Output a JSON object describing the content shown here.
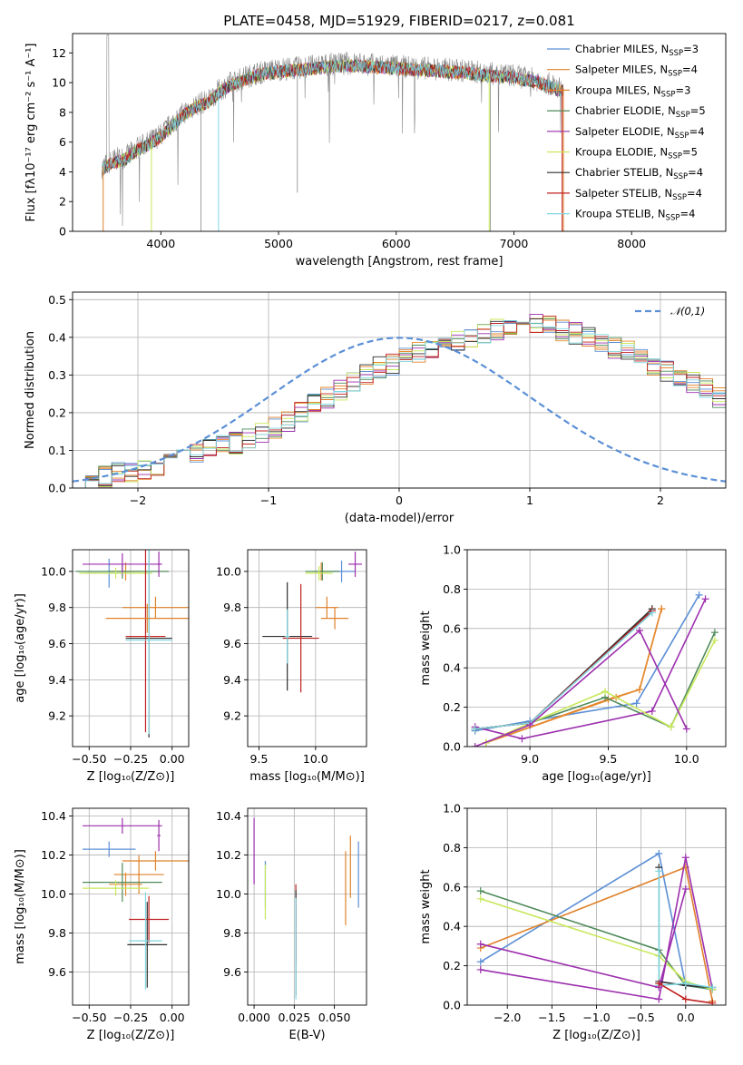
{
  "colors": {
    "chab_miles": "#5b8fd6",
    "salp_miles": "#e0812b",
    "krou_miles": "#e68a2e",
    "chab_elodie": "#4e8a5a",
    "salp_elodie": "#9c2fae",
    "krou_elodie": "#c8e85a",
    "chab_stelib": "#2f2f2f",
    "salp_stelib": "#c02020",
    "krou_stelib": "#7fd6e0",
    "normal": "#5b8fd6",
    "grid": "#b0b0b0"
  },
  "legend_spectrum": [
    {
      "label": "Chabrier MILES, N",
      "sub": "SSP",
      "tail": "=3",
      "color_key": "chab_miles"
    },
    {
      "label": "Salpeter MILES, N",
      "sub": "SSP",
      "tail": "=4",
      "color_key": "salp_miles"
    },
    {
      "label": "Kroupa MILES, N",
      "sub": "SSP",
      "tail": "=3",
      "color_key": "krou_miles"
    },
    {
      "label": "Chabrier ELODIE, N",
      "sub": "SSP",
      "tail": "=5",
      "color_key": "chab_elodie"
    },
    {
      "label": "Salpeter ELODIE, N",
      "sub": "SSP",
      "tail": "=4",
      "color_key": "salp_elodie"
    },
    {
      "label": "Kroupa ELODIE, N",
      "sub": "SSP",
      "tail": "=5",
      "color_key": "krou_elodie"
    },
    {
      "label": "Chabrier STELIB, N",
      "sub": "SSP",
      "tail": "=4",
      "color_key": "chab_stelib"
    },
    {
      "label": "Salpeter STELIB, N",
      "sub": "SSP",
      "tail": "=4",
      "color_key": "salp_stelib"
    },
    {
      "label": "Kroupa STELIB, N",
      "sub": "SSP",
      "tail": "=4",
      "color_key": "krou_stelib"
    }
  ],
  "chart_data": [
    {
      "id": "spectrum",
      "type": "line",
      "title": "PLATE=0458, MJD=51929, FIBERID=0217, z=0.081",
      "xlabel": "wavelength [Angstrom, rest frame]",
      "ylabel": "Flux [f",
      "ylabel_full": "Flux [fλ10⁻¹⁷ erg cm⁻² s⁻¹ A⁻¹]",
      "xlim": [
        3250,
        8800
      ],
      "ylim": [
        0,
        13.3
      ],
      "xticks": [
        4000,
        5000,
        6000,
        7000,
        8000
      ],
      "yticks": [
        0,
        2,
        4,
        6,
        8,
        10,
        12
      ],
      "observed_approx": {
        "x": [
          3500,
          3600,
          3700,
          3800,
          3900,
          4000,
          4100,
          4200,
          4300,
          4400,
          4500,
          4600,
          4800,
          5000,
          5200,
          5400,
          5600,
          5800,
          6000,
          6200,
          6400,
          6600,
          6800,
          7000,
          7100,
          7200,
          7300,
          7400
        ],
        "y": [
          4.3,
          4.8,
          5.0,
          5.6,
          6.0,
          6.5,
          7.3,
          8.0,
          8.5,
          8.8,
          9.5,
          10.0,
          10.6,
          10.9,
          11.0,
          11.2,
          11.3,
          11.2,
          11.1,
          11.0,
          10.9,
          10.8,
          10.6,
          10.5,
          10.3,
          10.2,
          9.9,
          9.6
        ]
      },
      "grid": false
    },
    {
      "id": "residuals",
      "type": "histogram",
      "xlabel": "(data-model)/error",
      "ylabel": "Normed distribution",
      "xlim": [
        -2.5,
        2.5
      ],
      "ylim": [
        0,
        0.52
      ],
      "xticks": [
        -2,
        -1,
        0,
        1,
        2
      ],
      "yticks": [
        0.0,
        0.1,
        0.2,
        0.3,
        0.4,
        0.5
      ],
      "bin_width": 0.1,
      "bin_start": -2.5,
      "base_values": [
        0.02,
        0.02,
        0.03,
        0.04,
        0.04,
        0.05,
        0.06,
        0.07,
        0.08,
        0.09,
        0.1,
        0.11,
        0.12,
        0.13,
        0.15,
        0.16,
        0.18,
        0.2,
        0.22,
        0.24,
        0.26,
        0.28,
        0.3,
        0.32,
        0.33,
        0.35,
        0.36,
        0.37,
        0.38,
        0.39,
        0.4,
        0.41,
        0.42,
        0.43,
        0.43,
        0.44,
        0.43,
        0.42,
        0.41,
        0.4,
        0.38,
        0.37,
        0.36,
        0.35,
        0.33,
        0.31,
        0.3,
        0.28,
        0.26,
        0.24,
        0.22,
        0.2,
        0.19,
        0.17,
        0.15,
        0.14,
        0.12,
        0.11,
        0.1,
        0.09,
        0.08,
        0.07,
        0.06,
        0.05,
        0.05,
        0.04,
        0.04,
        0.03,
        0.03,
        0.02,
        0.02,
        0.02,
        0.02,
        0.02,
        0.02,
        0.02,
        0.02,
        0.02,
        0.02,
        0.02
      ],
      "normal_label": "𝒩(0,1)",
      "grid": true
    },
    {
      "id": "age_vs_Z",
      "type": "errorbar",
      "xlabel": "Z [log₁₀(Z/Z⊙)]",
      "ylabel": "age  [log₁₀(age/yr)]",
      "xlim": [
        -0.6,
        0.1
      ],
      "ylim": [
        9.03,
        10.12
      ],
      "xticks": [
        -0.5,
        -0.25,
        0.0
      ],
      "xticklabels": [
        "−0.50",
        "−0.25",
        "0.00"
      ],
      "yticks": [
        9.2,
        9.4,
        9.6,
        9.8,
        10.0
      ],
      "points": [
        {
          "key": "chab_miles",
          "x": -0.38,
          "xerr": 0.14,
          "y": 9.99,
          "yerr": 0.08
        },
        {
          "key": "salp_miles",
          "x": -0.1,
          "xerr": 0.2,
          "y": 9.8,
          "yerr": 0.06
        },
        {
          "key": "krou_miles",
          "x": -0.28,
          "xerr": 0.1,
          "y": 10.0,
          "yerr": 0.05
        },
        {
          "key": "chab_elodie",
          "x": -0.3,
          "xerr": 0.28,
          "y": 10.0,
          "yerr": 0.04
        },
        {
          "key": "salp_elodie",
          "x": -0.3,
          "xerr": 0.24,
          "y": 10.04,
          "yerr": 0.06
        },
        {
          "key": "krou_elodie",
          "x": -0.34,
          "xerr": 0.22,
          "y": 9.99,
          "yerr": 0.03
        },
        {
          "key": "chab_stelib",
          "x": -0.14,
          "xerr": 0.14,
          "y": 9.63,
          "yerr": 0.55
        },
        {
          "key": "salp_stelib",
          "x": -0.16,
          "xerr": 0.12,
          "y": 9.64,
          "yerr": 0.53
        },
        {
          "key": "krou_stelib",
          "x": -0.14,
          "xerr": 0.14,
          "y": 9.62,
          "yerr": 0.52
        },
        {
          "key": "salp_elodie",
          "x": -0.08,
          "xerr": 0.01,
          "y": 10.04,
          "yerr": 0.07
        },
        {
          "key": "salp_miles",
          "x": -0.15,
          "xerr": 0.25,
          "y": 9.74,
          "yerr": 0.08
        }
      ],
      "grid": true
    },
    {
      "id": "age_vs_mass",
      "type": "errorbar",
      "xlabel": "mass [log₁₀(M/M⊙)]",
      "ylabel": "",
      "xlim": [
        9.4,
        10.45
      ],
      "ylim": [
        9.03,
        10.12
      ],
      "xticks": [
        9.5,
        10.0
      ],
      "xticklabels": [
        "9.5",
        "10.0"
      ],
      "yticks": [
        9.2,
        9.4,
        9.6,
        9.8,
        10.0
      ],
      "ytickslabels": [
        "9.2",
        "9.4",
        "9.6",
        "9.8",
        "10.0"
      ],
      "points": [
        {
          "key": "chab_miles",
          "x": 10.23,
          "xerr": 0.12,
          "y": 10.0,
          "yerr": 0.06
        },
        {
          "key": "salp_miles",
          "x": 10.1,
          "xerr": 0.1,
          "y": 9.8,
          "yerr": 0.06
        },
        {
          "key": "krou_miles",
          "x": 10.05,
          "xerr": 0.06,
          "y": 10.0,
          "yerr": 0.05
        },
        {
          "key": "chab_elodie",
          "x": 10.06,
          "xerr": 0.15,
          "y": 10.0,
          "yerr": 0.05
        },
        {
          "key": "salp_elodie",
          "x": 10.35,
          "xerr": 0.06,
          "y": 10.04,
          "yerr": 0.07
        },
        {
          "key": "krou_elodie",
          "x": 10.03,
          "xerr": 0.12,
          "y": 9.99,
          "yerr": 0.04
        },
        {
          "key": "chab_stelib",
          "x": 9.75,
          "xerr": 0.22,
          "y": 9.64,
          "yerr": 0.3
        },
        {
          "key": "salp_stelib",
          "x": 9.87,
          "xerr": 0.16,
          "y": 9.63,
          "yerr": 0.3
        },
        {
          "key": "krou_stelib",
          "x": 9.75,
          "xerr": 0.02,
          "y": 9.64,
          "yerr": 0.15
        },
        {
          "key": "salp_miles",
          "x": 10.17,
          "xerr": 0.12,
          "y": 9.74,
          "yerr": 0.06
        }
      ],
      "grid": true
    },
    {
      "id": "mw_vs_age",
      "type": "line",
      "xlabel": "age  [log₁₀(age/yr)]",
      "ylabel": "mass weight",
      "xlim": [
        8.6,
        10.25
      ],
      "ylim": [
        0,
        1.0
      ],
      "xticks": [
        9.0,
        9.5,
        10.0
      ],
      "xticklabels": [
        "9.0",
        "9.5",
        "10.0"
      ],
      "yticks": [
        0.0,
        0.2,
        0.4,
        0.6,
        0.8,
        1.0
      ],
      "series": [
        {
          "key": "chab_miles",
          "x": [
            8.65,
            9.0,
            9.68,
            10.08
          ],
          "y": [
            0.08,
            0.13,
            0.22,
            0.77
          ]
        },
        {
          "key": "salp_miles",
          "x": [
            8.72,
            9.5,
            9.7,
            9.84
          ],
          "y": [
            0.02,
            0.24,
            0.29,
            0.7
          ]
        },
        {
          "key": "krou_miles",
          "x": [
            8.72,
            9.55,
            9.7,
            9.84
          ],
          "y": [
            0.02,
            0.25,
            0.29,
            0.7
          ]
        },
        {
          "key": "chab_elodie",
          "x": [
            8.65,
            9.0,
            9.48,
            9.9,
            10.18
          ],
          "y": [
            0.09,
            0.12,
            0.25,
            0.1,
            0.58
          ]
        },
        {
          "key": "salp_elodie",
          "x": [
            8.65,
            8.95,
            9.78,
            10.12
          ],
          "y": [
            0.1,
            0.04,
            0.18,
            0.75
          ]
        },
        {
          "key": "krou_elodie",
          "x": [
            8.72,
            9.0,
            9.48,
            9.9,
            10.18
          ],
          "y": [
            0.02,
            0.12,
            0.28,
            0.1,
            0.54
          ]
        },
        {
          "key": "chab_stelib",
          "x": [
            8.65,
            9.0,
            9.78
          ],
          "y": [
            0.09,
            0.12,
            0.7
          ]
        },
        {
          "key": "salp_stelib",
          "x": [
            8.65,
            9.0,
            9.78
          ],
          "y": [
            0.09,
            0.12,
            0.69
          ]
        },
        {
          "key": "krou_stelib",
          "x": [
            8.65,
            9.0,
            9.78
          ],
          "y": [
            0.09,
            0.12,
            0.68
          ]
        },
        {
          "key": "salp_elodie",
          "x": [
            8.65,
            9.0,
            9.7,
            10.0
          ],
          "y": [
            0.0,
            0.11,
            0.59,
            0.09
          ]
        }
      ],
      "grid": true
    },
    {
      "id": "mass_vs_Z",
      "type": "errorbar",
      "xlabel": "Z [log₁₀(Z/Z⊙)]",
      "ylabel": "mass [log₁₀(M/M⊙)]",
      "xlim": [
        -0.6,
        0.1
      ],
      "ylim": [
        9.43,
        10.44
      ],
      "xticks": [
        -0.5,
        -0.25,
        0.0
      ],
      "xticklabels": [
        "−0.50",
        "−0.25",
        "0.00"
      ],
      "yticks": [
        9.6,
        9.8,
        10.0,
        10.2,
        10.4
      ],
      "points": [
        {
          "key": "chab_miles",
          "x": -0.38,
          "xerr": 0.16,
          "y": 10.23,
          "yerr": 0.04
        },
        {
          "key": "salp_miles",
          "x": -0.2,
          "xerr": 0.15,
          "y": 10.1,
          "yerr": 0.1
        },
        {
          "key": "krou_miles",
          "x": -0.28,
          "xerr": 0.1,
          "y": 10.05,
          "yerr": 0.06
        },
        {
          "key": "chab_elodie",
          "x": -0.3,
          "xerr": 0.24,
          "y": 10.06,
          "yerr": 0.1
        },
        {
          "key": "salp_elodie",
          "x": -0.3,
          "xerr": 0.24,
          "y": 10.35,
          "yerr": 0.04
        },
        {
          "key": "krou_elodie",
          "x": -0.34,
          "xerr": 0.2,
          "y": 10.03,
          "yerr": 0.04
        },
        {
          "key": "chab_stelib",
          "x": -0.15,
          "xerr": 0.12,
          "y": 9.74,
          "yerr": 0.22
        },
        {
          "key": "salp_stelib",
          "x": -0.14,
          "xerr": 0.12,
          "y": 9.87,
          "yerr": 0.12
        },
        {
          "key": "krou_stelib",
          "x": -0.16,
          "xerr": 0.1,
          "y": 9.76,
          "yerr": 0.25
        },
        {
          "key": "salp_miles",
          "x": -0.1,
          "xerr": 0.2,
          "y": 10.17,
          "yerr": 0.05
        },
        {
          "key": "salp_elodie",
          "x": -0.08,
          "xerr": 0.01,
          "y": 10.3,
          "yerr": 0.08
        }
      ],
      "grid": true
    },
    {
      "id": "mass_vs_ebv",
      "type": "errorbar",
      "xlabel": "E(B-V)",
      "ylabel": "",
      "xlim": [
        -0.004,
        0.07
      ],
      "ylim": [
        9.43,
        10.44
      ],
      "xticks": [
        0.0,
        0.025,
        0.05
      ],
      "xticklabels": [
        "0.000",
        "0.025",
        "0.050"
      ],
      "yticks": [
        9.6,
        9.8,
        10.0,
        10.2,
        10.4
      ],
      "points": [
        {
          "key": "salp_elodie",
          "x": 0.0,
          "xerr": 0,
          "y": 10.22,
          "yerr": 0.17
        },
        {
          "key": "chab_miles",
          "x": 0.007,
          "xerr": 0,
          "y": 10.05,
          "yerr": 0.12
        },
        {
          "key": "krou_elodie",
          "x": 0.007,
          "xerr": 0,
          "y": 10.01,
          "yerr": 0.14
        },
        {
          "key": "salp_stelib",
          "x": 0.026,
          "xerr": 0,
          "y": 9.85,
          "yerr": 0.2
        },
        {
          "key": "chab_stelib",
          "x": 0.026,
          "xerr": 0,
          "y": 9.75,
          "yerr": 0.27
        },
        {
          "key": "krou_stelib",
          "x": 0.026,
          "xerr": 0,
          "y": 9.72,
          "yerr": 0.26
        },
        {
          "key": "salp_miles",
          "x": 0.057,
          "xerr": 0,
          "y": 10.03,
          "yerr": 0.19
        },
        {
          "key": "salp_miles",
          "x": 0.06,
          "xerr": 0,
          "y": 10.14,
          "yerr": 0.16
        },
        {
          "key": "chab_miles",
          "x": 0.065,
          "xerr": 0,
          "y": 10.1,
          "yerr": 0.17
        }
      ],
      "grid": true
    },
    {
      "id": "mw_vs_Z",
      "type": "line",
      "xlabel": "Z [log₁₀(Z/Z⊙)]",
      "ylabel": "mass weight",
      "xlim": [
        -2.45,
        0.45
      ],
      "ylim": [
        0,
        1.0
      ],
      "xticks": [
        -2.0,
        -1.5,
        -1.0,
        -0.5,
        0.0
      ],
      "xticklabels": [
        "−2.0",
        "−1.5",
        "−1.0",
        "−0.5",
        "0.0"
      ],
      "yticks": [
        0.0,
        0.2,
        0.4,
        0.6,
        0.8,
        1.0
      ],
      "series": [
        {
          "key": "chab_miles",
          "x": [
            -2.3,
            -0.3,
            0.0,
            0.3
          ],
          "y": [
            0.22,
            0.77,
            0.1,
            0.08
          ]
        },
        {
          "key": "salp_miles",
          "x": [
            -2.3,
            0.0,
            0.3
          ],
          "y": [
            0.29,
            0.7,
            0.02
          ]
        },
        {
          "key": "chab_elodie",
          "x": [
            -2.3,
            -0.3,
            0.0,
            0.3
          ],
          "y": [
            0.58,
            0.28,
            0.1,
            0.08
          ]
        },
        {
          "key": "salp_elodie",
          "x": [
            -2.3,
            -0.3,
            0.0,
            0.3
          ],
          "y": [
            0.18,
            0.03,
            0.75,
            0.08
          ]
        },
        {
          "key": "krou_elodie",
          "x": [
            -2.3,
            -0.3,
            0.0,
            0.3
          ],
          "y": [
            0.54,
            0.25,
            0.12,
            0.08
          ]
        },
        {
          "key": "chab_stelib",
          "x": [
            -0.3,
            -0.3,
            0.0,
            0.3
          ],
          "y": [
            0.7,
            0.12,
            0.1,
            0.09
          ]
        },
        {
          "key": "krou_stelib",
          "x": [
            -0.3,
            -0.3,
            0.0,
            0.3
          ],
          "y": [
            0.68,
            0.1,
            0.11,
            0.09
          ]
        },
        {
          "key": "salp_elodie",
          "x": [
            -2.3,
            -0.3,
            0.0
          ],
          "y": [
            0.31,
            0.09,
            0.59
          ]
        },
        {
          "key": "salp_stelib",
          "x": [
            -0.3,
            0.0,
            0.3
          ],
          "y": [
            0.11,
            0.03,
            0.01
          ]
        }
      ],
      "grid": true
    }
  ]
}
